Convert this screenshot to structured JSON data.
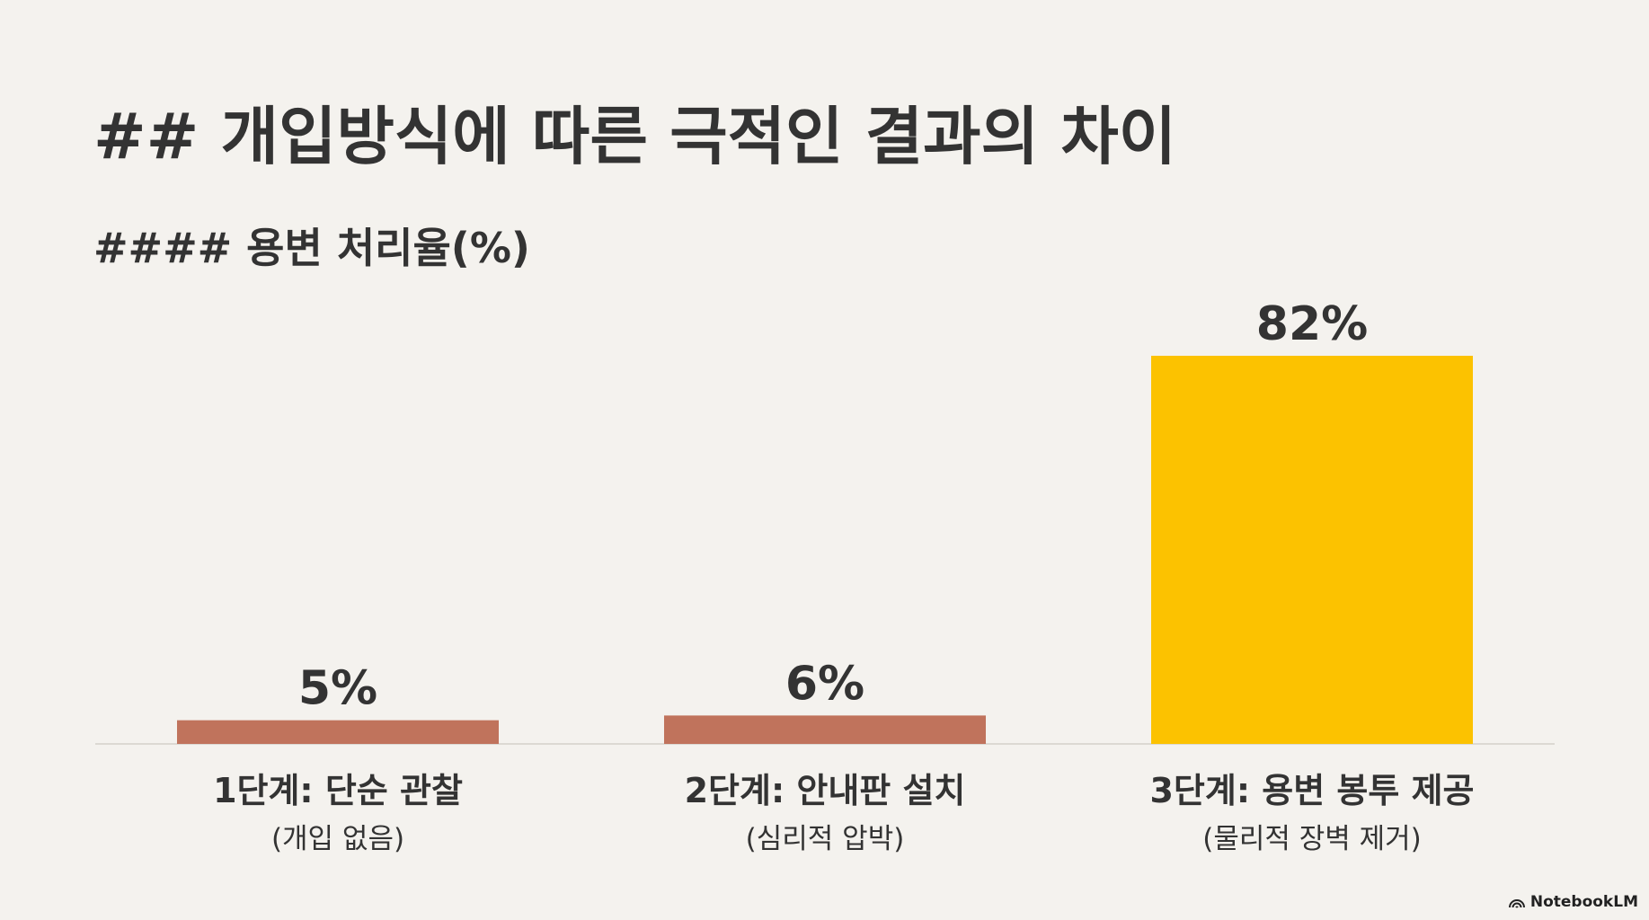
{
  "header": {
    "title": "## 개입방식에 따른 극적인 결과의 차이",
    "subtitle": "#### 용변 처리율(%)"
  },
  "chart_data": {
    "type": "bar",
    "categories": [
      "1단계: 단순 관찰",
      "2단계: 안내판 설치",
      "3단계: 용변 봉투 제공"
    ],
    "category_notes": [
      "(개입 없음)",
      "(심리적 압박)",
      "(물리적 장벽 제거)"
    ],
    "values": [
      5,
      6,
      82
    ],
    "value_labels": [
      "5%",
      "6%",
      "82%"
    ],
    "title": "",
    "xlabel": "",
    "ylabel": "",
    "ylim": [
      0,
      82
    ],
    "grid": false,
    "legend": "none",
    "colors": [
      "#c0735c",
      "#c0735c",
      "#fcc200"
    ]
  },
  "brand": {
    "name": "NotebookLM",
    "icon": "notebooklm-logo-icon"
  }
}
